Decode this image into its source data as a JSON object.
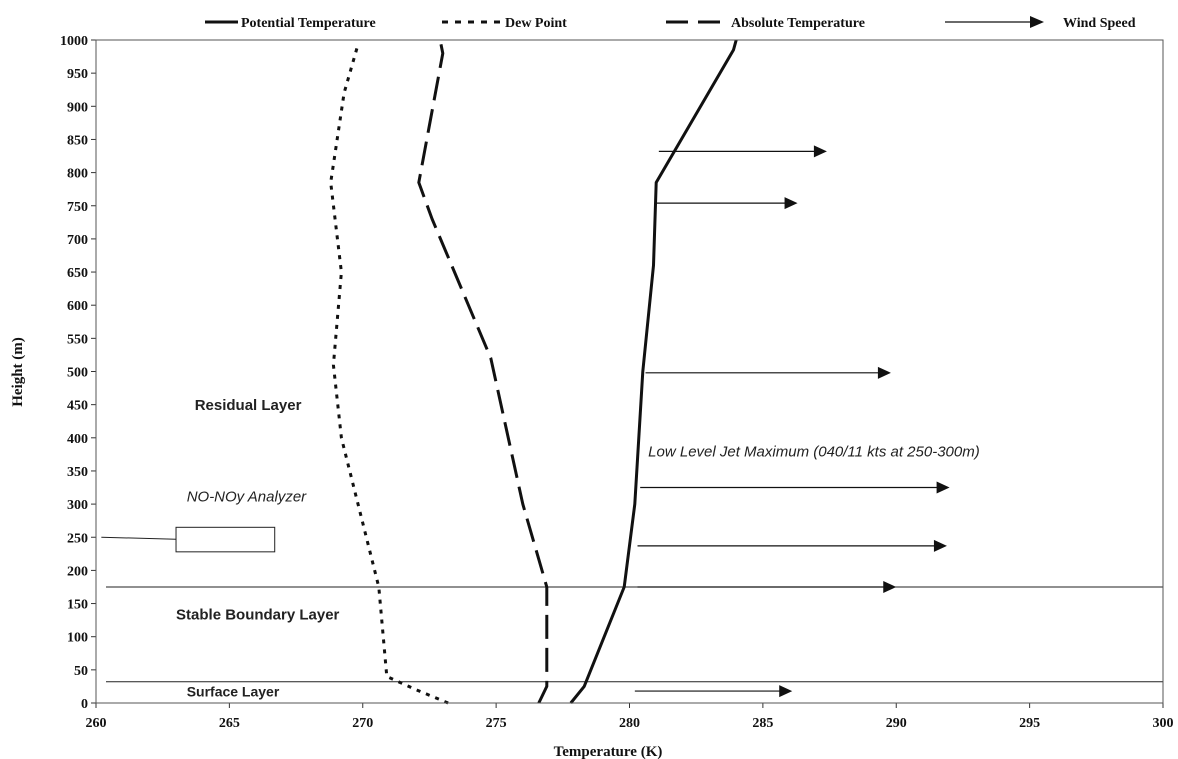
{
  "chart_data": {
    "type": "line",
    "xlabel": "Temperature (K)",
    "ylabel": "Height (m)",
    "xlim": [
      260,
      300
    ],
    "ylim": [
      0,
      1000
    ],
    "x_ticks": [
      "260",
      "265",
      "270",
      "275",
      "280",
      "285",
      "290",
      "295",
      "300"
    ],
    "y_ticks": [
      "0",
      "50",
      "100",
      "150",
      "200",
      "250",
      "300",
      "350",
      "400",
      "450",
      "500",
      "550",
      "600",
      "650",
      "700",
      "750",
      "800",
      "850",
      "900",
      "950",
      "1000"
    ],
    "legend": {
      "placement": "top",
      "entries": [
        {
          "label": "Potential Temperature",
          "style": "solid"
        },
        {
          "label": "Dew Point",
          "style": "dotted"
        },
        {
          "label": "Absolute Temperature",
          "style": "dashed"
        },
        {
          "label": "Wind Speed",
          "style": "arrow"
        }
      ]
    },
    "series": [
      {
        "name": "Potential Temperature",
        "style": "solid",
        "points": [
          [
            277.8,
            0
          ],
          [
            278.3,
            25
          ],
          [
            279.8,
            175
          ],
          [
            280.2,
            300
          ],
          [
            280.5,
            500
          ],
          [
            280.9,
            660
          ],
          [
            281.0,
            785
          ],
          [
            283.9,
            985
          ],
          [
            284.0,
            1000
          ]
        ]
      },
      {
        "name": "Dew Point",
        "style": "dotted",
        "points": [
          [
            273.2,
            0
          ],
          [
            272.0,
            20
          ],
          [
            270.9,
            40
          ],
          [
            270.6,
            175
          ],
          [
            269.2,
            400
          ],
          [
            268.9,
            510
          ],
          [
            269.2,
            650
          ],
          [
            268.8,
            785
          ],
          [
            269.3,
            920
          ],
          [
            269.8,
            990
          ]
        ]
      },
      {
        "name": "Absolute Temperature",
        "style": "dashed",
        "points": [
          [
            276.6,
            0
          ],
          [
            276.9,
            25
          ],
          [
            276.9,
            175
          ],
          [
            276.0,
            300
          ],
          [
            274.8,
            520
          ],
          [
            272.6,
            730
          ],
          [
            272.1,
            785
          ],
          [
            273.0,
            980
          ],
          [
            272.9,
            1000
          ]
        ]
      }
    ],
    "wind_arrows": [
      {
        "x_start": 280.2,
        "x_end": 286.1,
        "y": 18
      },
      {
        "x_start": 280.3,
        "x_end": 290.0,
        "y": 175
      },
      {
        "x_start": 280.3,
        "x_end": 291.9,
        "y": 237
      },
      {
        "x_start": 280.4,
        "x_end": 292.0,
        "y": 325
      },
      {
        "x_start": 280.6,
        "x_end": 289.8,
        "y": 498
      },
      {
        "x_start": 281.0,
        "x_end": 286.3,
        "y": 754
      },
      {
        "x_start": 281.1,
        "x_end": 287.4,
        "y": 832
      }
    ],
    "reference_lines": [
      {
        "y": 32
      },
      {
        "y": 175
      }
    ],
    "annotations": {
      "residual_layer": "Residual Layer",
      "stable_boundary_layer": "Stable Boundary Layer",
      "surface_layer": "Surface Layer",
      "low_level_jet": "Low Level Jet Maximum (040/11 kts at 250-300m)",
      "analyzer": "NO-NOy Analyzer"
    },
    "analyzer_box": {
      "x_from": 263.0,
      "x_to": 266.7,
      "y_from": 228,
      "y_to": 265,
      "pointer_x": 260.2,
      "pointer_y": 250
    },
    "grid": false
  }
}
